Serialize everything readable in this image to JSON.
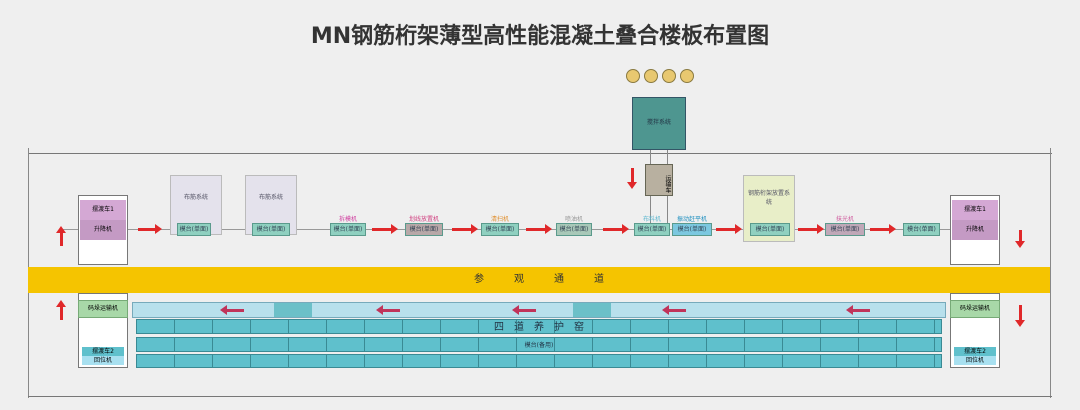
{
  "title": "MN钢筋桁架薄型高性能混凝土叠合楼板布置图",
  "colors": {
    "aisle": "#f5c400",
    "kiln": "#5fc0cc",
    "arrow": "#e0282a",
    "mixer": "#4e9690"
  },
  "top": {
    "mixer": "搅拌系统",
    "transport": "运输车",
    "ferry_left": {
      "top": "摆渡车1",
      "bottom": "升降机"
    },
    "ferry_right": {
      "top": "摆渡车1",
      "bottom": "升降机"
    },
    "boxes": [
      "布筋系统",
      "布筋系统"
    ],
    "green_box": "钢筋桁架放置系统",
    "module_label": "模台(单面)",
    "station_labels": [
      "拆模机",
      "划线放置机",
      "清扫机",
      "喷油机",
      "布料机",
      "振动赶平机",
      "抹光机"
    ]
  },
  "aisle": "参　　　观　　　通　　　道",
  "kiln": {
    "label": "四　道　养　护　窑",
    "spare": "模台(备用)"
  },
  "bottom": {
    "left_conveyor": "码垛运输机",
    "right_conveyor": "码垛运输机",
    "left_ferry": [
      "摆渡车2",
      "回位机"
    ],
    "right_ferry": [
      "摆渡车2",
      "回位机"
    ]
  }
}
